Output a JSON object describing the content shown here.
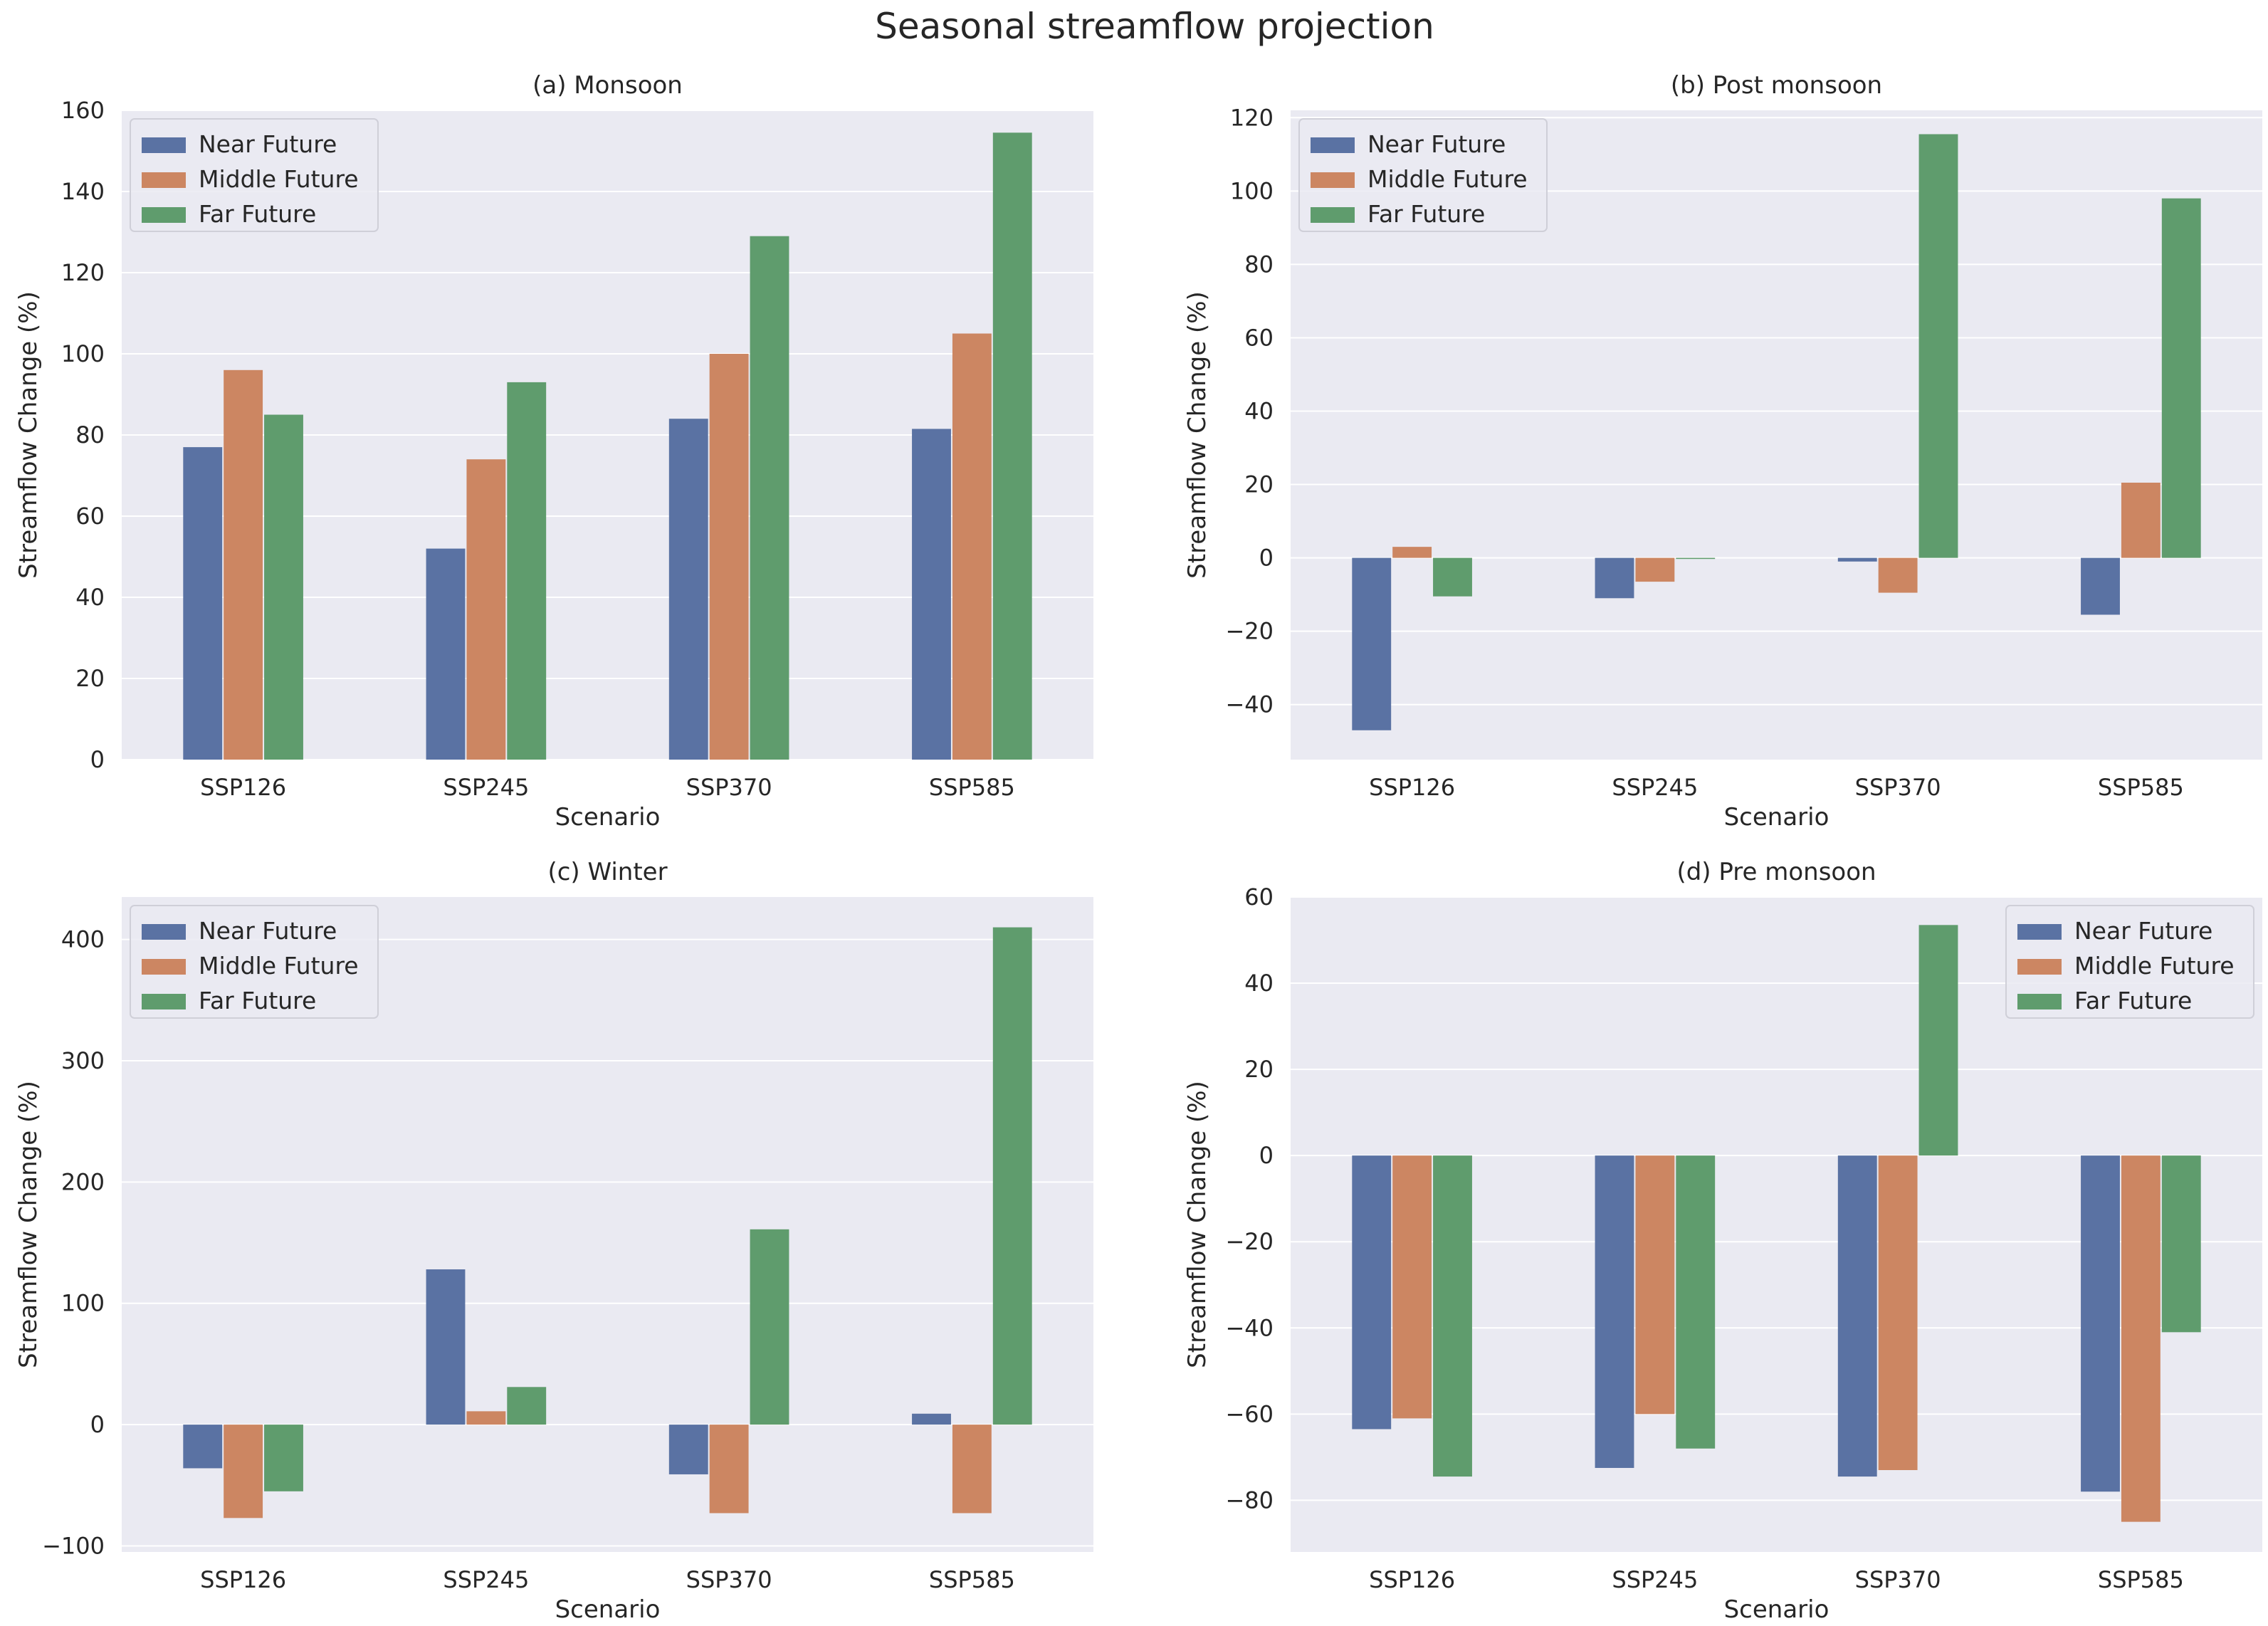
{
  "figure_title": "Seasonal streamflow projection",
  "colors": {
    "Near Future": "#5a72a3",
    "Middle Future": "#cc8662",
    "Far Future": "#5f9c6d",
    "plot_bg": "#eaeaf2",
    "grid": "#ffffff"
  },
  "chart_data": [
    {
      "type": "bar",
      "title": "(a) Monsoon",
      "xlabel": "Scenario",
      "ylabel": "Streamflow Change (%)",
      "categories": [
        "SSP126",
        "SSP245",
        "SSP370",
        "SSP585"
      ],
      "ylim": [
        0,
        160
      ],
      "yticks": [
        0,
        20,
        40,
        60,
        80,
        100,
        120,
        140,
        160
      ],
      "ytick_labels": [
        "0",
        "20",
        "40",
        "60",
        "80",
        "100",
        "120",
        "140",
        "160"
      ],
      "legend_position": "top-left",
      "series": [
        {
          "name": "Near Future",
          "values": [
            77,
            52,
            84,
            81.5
          ]
        },
        {
          "name": "Middle Future",
          "values": [
            96,
            74,
            100,
            105
          ]
        },
        {
          "name": "Far Future",
          "values": [
            85,
            93,
            129,
            154.5
          ]
        }
      ]
    },
    {
      "type": "bar",
      "title": "(b) Post monsoon",
      "xlabel": "Scenario",
      "ylabel": "Streamflow Change (%)",
      "categories": [
        "SSP126",
        "SSP245",
        "SSP370",
        "SSP585"
      ],
      "ylim": [
        -55,
        122
      ],
      "yticks": [
        -40,
        -20,
        0,
        20,
        40,
        60,
        80,
        100,
        120
      ],
      "ytick_labels": [
        "−40",
        "−20",
        "0",
        "20",
        "40",
        "60",
        "80",
        "100",
        "120"
      ],
      "legend_position": "top-left",
      "series": [
        {
          "name": "Near Future",
          "values": [
            -47,
            -11,
            -1,
            -15.5
          ]
        },
        {
          "name": "Middle Future",
          "values": [
            3,
            -6.5,
            -9.5,
            20.5
          ]
        },
        {
          "name": "Far Future",
          "values": [
            -10.5,
            -0.3,
            115.5,
            98
          ]
        }
      ]
    },
    {
      "type": "bar",
      "title": "(c) Winter",
      "xlabel": "Scenario",
      "ylabel": "Streamflow Change (%)",
      "categories": [
        "SSP126",
        "SSP245",
        "SSP370",
        "SSP585"
      ],
      "ylim": [
        -105,
        435
      ],
      "yticks": [
        -100,
        0,
        100,
        200,
        300,
        400
      ],
      "ytick_labels": [
        "−100",
        "0",
        "100",
        "200",
        "300",
        "400"
      ],
      "legend_position": "top-left",
      "series": [
        {
          "name": "Near Future",
          "values": [
            -36,
            128,
            -41,
            9
          ]
        },
        {
          "name": "Middle Future",
          "values": [
            -77,
            11,
            -73,
            -73
          ]
        },
        {
          "name": "Far Future",
          "values": [
            -55,
            31,
            161,
            410
          ]
        }
      ]
    },
    {
      "type": "bar",
      "title": "(d) Pre monsoon",
      "xlabel": "Scenario",
      "ylabel": "Streamflow Change (%)",
      "categories": [
        "SSP126",
        "SSP245",
        "SSP370",
        "SSP585"
      ],
      "ylim": [
        -92,
        60
      ],
      "yticks": [
        -80,
        -60,
        -40,
        -20,
        0,
        20,
        40,
        60
      ],
      "ytick_labels": [
        "−80",
        "−60",
        "−40",
        "−20",
        "0",
        "20",
        "40",
        "60"
      ],
      "legend_position": "top-right",
      "series": [
        {
          "name": "Near Future",
          "values": [
            -63.5,
            -72.5,
            -74.5,
            -78
          ]
        },
        {
          "name": "Middle Future",
          "values": [
            -61,
            -60,
            -73,
            -85
          ]
        },
        {
          "name": "Far Future",
          "values": [
            -74.5,
            -68,
            53.5,
            -41
          ]
        }
      ]
    }
  ]
}
